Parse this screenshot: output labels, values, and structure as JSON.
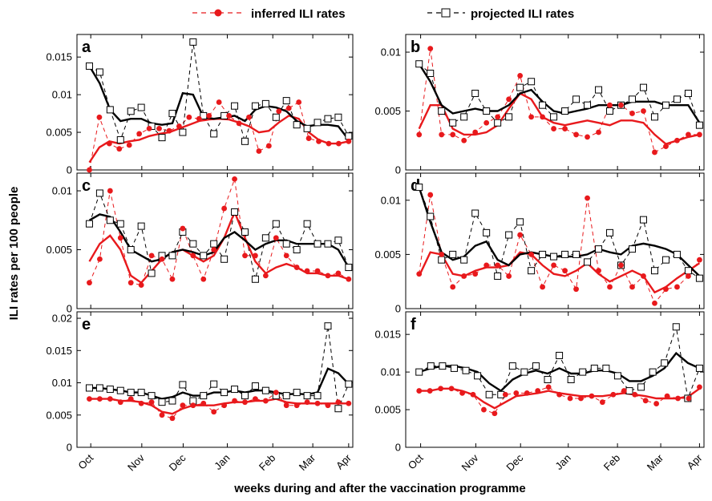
{
  "chart_data": {
    "type": "line",
    "xlabel": "weeks during and after the vaccination programme",
    "ylabel": "ILI rates per 100 people",
    "months": [
      "Oct",
      "Nov",
      "Dec",
      "Jan",
      "Feb",
      "Mar",
      "Apr"
    ],
    "legend": {
      "placement": "top",
      "entries": [
        {
          "label": "inferred ILI rates",
          "color": "#e8191c",
          "marker": "filled-circle",
          "line": "dashed"
        },
        {
          "label": "projected ILI rates",
          "color": "#000000",
          "marker": "open-square",
          "line": "dashed"
        }
      ]
    },
    "series_colors": {
      "inferred": "#e8191c",
      "projected": "#000000"
    },
    "panels": [
      {
        "letter": "a",
        "ylim": [
          0,
          0.018
        ],
        "yticks": [
          0,
          0.005,
          0.01,
          0.015
        ],
        "ytick_labels": [
          "0",
          "0.005",
          "0.01",
          "0.015"
        ],
        "inferred": [
          0.0,
          0.007,
          0.0035,
          0.0028,
          0.0033,
          0.0048,
          0.0055,
          0.0055,
          0.0052,
          0.0058,
          0.007,
          0.0068,
          0.0072,
          0.009,
          0.0072,
          0.0062,
          0.007,
          0.0025,
          0.0032,
          0.0078,
          0.0082,
          0.009,
          0.0042,
          0.0038,
          0.0035,
          0.0035,
          0.0038
        ],
        "inferred_smooth": [
          0.001,
          0.003,
          0.0038,
          0.0035,
          0.0038,
          0.004,
          0.0045,
          0.0048,
          0.005,
          0.0055,
          0.006,
          0.0065,
          0.0067,
          0.0068,
          0.0067,
          0.0063,
          0.0058,
          0.005,
          0.0052,
          0.0063,
          0.0072,
          0.0068,
          0.005,
          0.004,
          0.0035,
          0.0035,
          0.0038
        ],
        "projected": [
          0.0138,
          0.013,
          0.008,
          0.004,
          0.0078,
          0.0083,
          0.0058,
          0.0043,
          0.0075,
          0.005,
          0.017,
          0.0072,
          0.0048,
          0.0072,
          0.0085,
          0.0038,
          0.0085,
          0.0088,
          0.007,
          0.0092,
          0.006,
          0.0055,
          0.0063,
          0.0068,
          0.007,
          0.0045
        ],
        "projected_smooth": [
          0.0138,
          0.0115,
          0.008,
          0.0065,
          0.0068,
          0.0068,
          0.0062,
          0.006,
          0.0062,
          0.0102,
          0.01,
          0.007,
          0.0068,
          0.007,
          0.0072,
          0.0065,
          0.008,
          0.0085,
          0.0083,
          0.0078,
          0.0065,
          0.0058,
          0.006,
          0.006,
          0.0058,
          0.004
        ]
      },
      {
        "letter": "b",
        "ylim": [
          0,
          0.0115
        ],
        "yticks": [
          0,
          0.005,
          0.01
        ],
        "ytick_labels": [
          "0",
          "0.005",
          "0.01"
        ],
        "inferred": [
          0.003,
          0.0103,
          0.003,
          0.003,
          0.0025,
          0.0032,
          0.004,
          0.0045,
          0.006,
          0.008,
          0.0045,
          0.0045,
          0.0035,
          0.0035,
          0.003,
          0.0028,
          0.0032,
          0.0055,
          0.0055,
          0.0048,
          0.005,
          0.0015,
          0.002,
          0.0025,
          0.003,
          0.003
        ],
        "inferred_smooth": [
          0.0035,
          0.0055,
          0.0055,
          0.0035,
          0.003,
          0.003,
          0.0032,
          0.0038,
          0.0052,
          0.0065,
          0.006,
          0.0045,
          0.004,
          0.0038,
          0.004,
          0.0042,
          0.004,
          0.0038,
          0.0042,
          0.0042,
          0.004,
          0.003,
          0.0022,
          0.0025,
          0.0028,
          0.003
        ],
        "projected": [
          0.009,
          0.0082,
          0.005,
          0.004,
          0.0045,
          0.0065,
          0.005,
          0.004,
          0.0045,
          0.007,
          0.0075,
          0.0055,
          0.0045,
          0.005,
          0.006,
          0.0055,
          0.0068,
          0.005,
          0.0055,
          0.006,
          0.007,
          0.0045,
          0.0055,
          0.006,
          0.0065,
          0.0038
        ],
        "projected_smooth": [
          0.009,
          0.0075,
          0.0055,
          0.0048,
          0.005,
          0.0052,
          0.005,
          0.005,
          0.0055,
          0.0065,
          0.0068,
          0.0058,
          0.005,
          0.0048,
          0.005,
          0.0052,
          0.0055,
          0.0055,
          0.0055,
          0.0058,
          0.0058,
          0.0058,
          0.0055,
          0.0055,
          0.0055,
          0.004
        ]
      },
      {
        "letter": "c",
        "ylim": [
          0,
          0.0115
        ],
        "yticks": [
          0,
          0.005,
          0.01
        ],
        "ytick_labels": [
          "0",
          "0.005",
          "0.01"
        ],
        "inferred": [
          0.0022,
          0.0042,
          0.01,
          0.006,
          0.0022,
          0.002,
          0.0045,
          0.0042,
          0.0025,
          0.0068,
          0.0045,
          0.0025,
          0.005,
          0.0085,
          0.011,
          0.0045,
          0.0045,
          0.0028,
          0.006,
          0.0045,
          0.0035,
          0.0032,
          0.0032,
          0.0028,
          0.003,
          0.0025
        ],
        "inferred_smooth": [
          0.004,
          0.0055,
          0.0062,
          0.005,
          0.0028,
          0.0022,
          0.0032,
          0.0042,
          0.0048,
          0.005,
          0.0045,
          0.004,
          0.0045,
          0.006,
          0.0082,
          0.006,
          0.004,
          0.003,
          0.0035,
          0.0038,
          0.0035,
          0.003,
          0.003,
          0.0028,
          0.0028,
          0.0025
        ],
        "projected": [
          0.0072,
          0.0098,
          0.0075,
          0.0072,
          0.005,
          0.007,
          0.003,
          0.0045,
          0.0045,
          0.0065,
          0.0055,
          0.0045,
          0.0055,
          0.0042,
          0.0082,
          0.0065,
          0.0025,
          0.006,
          0.0072,
          0.0055,
          0.005,
          0.0072,
          0.0055,
          0.0055,
          0.0058,
          0.0035
        ],
        "projected_smooth": [
          0.0075,
          0.008,
          0.0078,
          0.0065,
          0.005,
          0.0045,
          0.004,
          0.0042,
          0.0048,
          0.005,
          0.0048,
          0.0045,
          0.0048,
          0.006,
          0.0065,
          0.0058,
          0.005,
          0.0055,
          0.0058,
          0.0058,
          0.0055,
          0.0055,
          0.0055,
          0.0055,
          0.005,
          0.0035
        ]
      },
      {
        "letter": "d",
        "ylim": [
          0,
          0.0125
        ],
        "yticks": [
          0,
          0.005,
          0.01
        ],
        "ytick_labels": [
          "0",
          "0.005",
          "0.01"
        ],
        "inferred": [
          0.0032,
          0.0105,
          0.005,
          0.002,
          0.003,
          0.0032,
          0.004,
          0.004,
          0.003,
          0.0068,
          0.005,
          0.002,
          0.004,
          0.0035,
          0.0018,
          0.0102,
          0.0035,
          0.002,
          0.004,
          0.002,
          0.003,
          0.0005,
          0.0018,
          0.002,
          0.003,
          0.0045
        ],
        "inferred_smooth": [
          0.003,
          0.0052,
          0.005,
          0.0032,
          0.003,
          0.0035,
          0.0038,
          0.0038,
          0.004,
          0.0052,
          0.005,
          0.004,
          0.0032,
          0.003,
          0.0035,
          0.0042,
          0.0032,
          0.0025,
          0.003,
          0.0035,
          0.003,
          0.0015,
          0.002,
          0.0028,
          0.0035,
          0.0042
        ],
        "projected": [
          0.0112,
          0.0085,
          0.0045,
          0.005,
          0.0045,
          0.0088,
          0.007,
          0.003,
          0.0068,
          0.008,
          0.0035,
          0.005,
          0.0048,
          0.005,
          0.005,
          0.0043,
          0.0055,
          0.007,
          0.004,
          0.0055,
          0.0082,
          0.0035,
          0.0045,
          0.005,
          0.0035,
          0.0028
        ],
        "projected_smooth": [
          0.0112,
          0.008,
          0.0052,
          0.0045,
          0.0048,
          0.0058,
          0.0062,
          0.0045,
          0.004,
          0.005,
          0.0052,
          0.005,
          0.0048,
          0.0048,
          0.0048,
          0.005,
          0.0055,
          0.0052,
          0.005,
          0.0058,
          0.006,
          0.0058,
          0.0055,
          0.005,
          0.004,
          0.003
        ]
      },
      {
        "letter": "e",
        "ylim": [
          0,
          0.021
        ],
        "yticks": [
          0,
          0.005,
          0.01,
          0.015,
          0.02
        ],
        "ytick_labels": [
          "0",
          "0.005",
          "0.01",
          "0.015",
          "0.02"
        ],
        "inferred": [
          0.0075,
          0.0075,
          0.0075,
          0.007,
          0.0075,
          0.0068,
          0.007,
          0.005,
          0.0045,
          0.0065,
          0.0065,
          0.0068,
          0.0055,
          0.0065,
          0.0072,
          0.007,
          0.0075,
          0.0072,
          0.0085,
          0.0065,
          0.0065,
          0.007,
          0.0068,
          0.0065,
          0.007,
          0.0068
        ],
        "inferred_smooth": [
          0.0075,
          0.0075,
          0.0075,
          0.0072,
          0.0072,
          0.007,
          0.0065,
          0.0055,
          0.0052,
          0.006,
          0.0065,
          0.0065,
          0.0065,
          0.0068,
          0.007,
          0.007,
          0.0072,
          0.0072,
          0.0075,
          0.007,
          0.0068,
          0.0068,
          0.0068,
          0.0068,
          0.0068,
          0.0068
        ],
        "projected": [
          0.0092,
          0.0092,
          0.009,
          0.0088,
          0.0085,
          0.0085,
          0.008,
          0.007,
          0.0072,
          0.0097,
          0.0072,
          0.008,
          0.0098,
          0.0085,
          0.009,
          0.008,
          0.0095,
          0.0088,
          0.008,
          0.008,
          0.0085,
          0.008,
          0.008,
          0.0188,
          0.006,
          0.0098
        ],
        "projected_smooth": [
          0.0092,
          0.0092,
          0.009,
          0.0088,
          0.0085,
          0.0085,
          0.008,
          0.0075,
          0.0078,
          0.0085,
          0.008,
          0.008,
          0.0085,
          0.0085,
          0.0088,
          0.0085,
          0.0088,
          0.0088,
          0.0085,
          0.0082,
          0.0083,
          0.0082,
          0.0085,
          0.0122,
          0.0115,
          0.0098
        ]
      },
      {
        "letter": "f",
        "ylim": [
          0,
          0.018
        ],
        "yticks": [
          0,
          0.005,
          0.01,
          0.015
        ],
        "ytick_labels": [
          "0",
          "0.005",
          "0.01",
          "0.015"
        ],
        "inferred": [
          0.0075,
          0.0075,
          0.0078,
          0.0078,
          0.0072,
          0.007,
          0.005,
          0.0045,
          0.007,
          0.0072,
          0.0072,
          0.0075,
          0.008,
          0.007,
          0.0065,
          0.0065,
          0.0068,
          0.006,
          0.007,
          0.0075,
          0.007,
          0.0062,
          0.0058,
          0.0068,
          0.0065,
          0.0065,
          0.008
        ],
        "inferred_smooth": [
          0.0075,
          0.0075,
          0.0078,
          0.0078,
          0.0075,
          0.007,
          0.006,
          0.0052,
          0.006,
          0.0068,
          0.007,
          0.0072,
          0.0075,
          0.0072,
          0.007,
          0.0068,
          0.0068,
          0.0068,
          0.007,
          0.0072,
          0.007,
          0.0068,
          0.0065,
          0.0065,
          0.0065,
          0.0068,
          0.0078
        ],
        "projected": [
          0.01,
          0.0108,
          0.0108,
          0.0105,
          0.0102,
          0.0095,
          0.007,
          0.007,
          0.0108,
          0.01,
          0.0108,
          0.009,
          0.0122,
          0.009,
          0.01,
          0.0105,
          0.0105,
          0.0095,
          0.0075,
          0.008,
          0.01,
          0.0112,
          0.016,
          0.0065,
          0.0105
        ],
        "projected_smooth": [
          0.01,
          0.0105,
          0.0108,
          0.0108,
          0.0105,
          0.01,
          0.0085,
          0.0075,
          0.009,
          0.0098,
          0.0102,
          0.0098,
          0.0105,
          0.0098,
          0.0098,
          0.0102,
          0.0102,
          0.0098,
          0.0088,
          0.0088,
          0.0095,
          0.0105,
          0.0125,
          0.0112,
          0.0105
        ]
      }
    ]
  }
}
